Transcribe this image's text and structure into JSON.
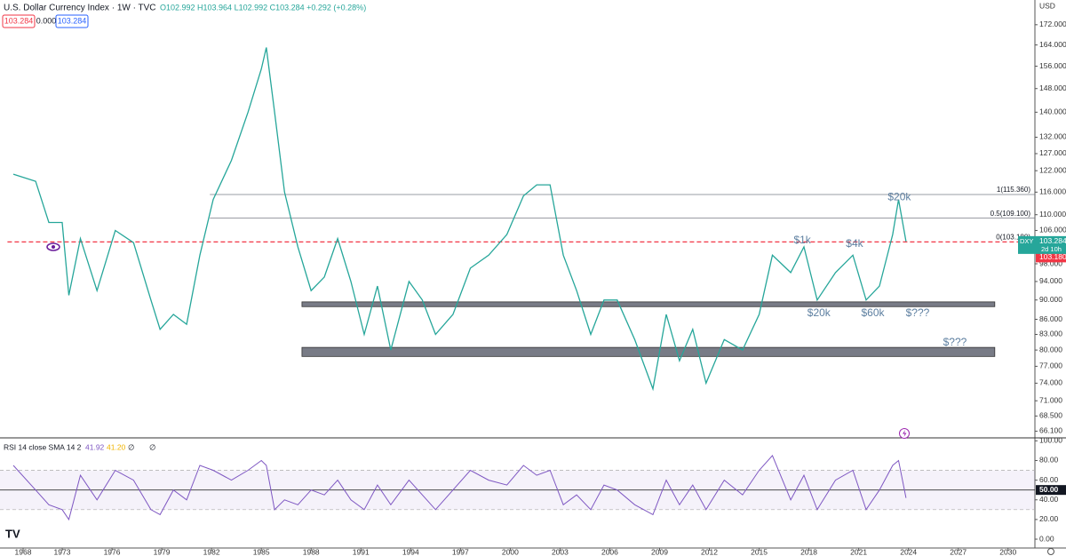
{
  "header": {
    "title": "U.S. Dollar Currency Index · 1W · TVC",
    "ohlc": "O102.992 H103.964 L102.992 C103.284 +0.292 (+0.28%)",
    "badges": [
      "103.284",
      "0.000",
      "103.284"
    ]
  },
  "chart_data": [
    {
      "type": "line",
      "currency": "USD",
      "log_scale": true,
      "x": [
        1966.75,
        1969.6,
        1971.3,
        1973,
        1973.4,
        1974.1,
        1975.1,
        1976.2,
        1977.3,
        1978.35,
        1978.9,
        1979.7,
        1980.5,
        1981.3,
        1982.1,
        1983.2,
        1984.2,
        1985.0,
        1985.3,
        1985.8,
        1986.4,
        1987.2,
        1988.0,
        1988.8,
        1989.6,
        1990.4,
        1991.2,
        1992.0,
        1992.8,
        1993.9,
        1994.7,
        1995.5,
        1996.55,
        1997.6,
        1998.7,
        1999.8,
        2000.8,
        2001.6,
        2002.4,
        2003.2,
        2004.0,
        2004.85,
        2005.65,
        2006.45,
        2007.5,
        2008.6,
        2009.4,
        2010.2,
        2011.0,
        2011.8,
        2012.9,
        2014.0,
        2015.0,
        2015.8,
        2016.9,
        2017.7,
        2018.5,
        2019.6,
        2020.65,
        2021.45,
        2022.25,
        2023.05,
        2023.4,
        2023.85
      ],
      "series": [
        {
          "name": "DXY",
          "color": "#26a69a",
          "values": [
            121,
            119,
            108,
            108,
            91,
            104,
            92,
            106,
            103,
            90,
            84,
            87,
            85,
            100,
            114,
            125,
            140,
            155,
            163,
            140,
            116,
            102,
            92,
            95,
            104,
            94,
            83,
            93,
            80,
            94,
            90,
            83,
            87,
            97,
            100,
            105,
            115,
            118,
            118,
            100,
            92,
            83,
            90,
            90,
            82,
            73,
            87,
            78,
            84,
            74,
            82,
            80,
            87,
            100,
            96,
            102,
            90,
            96,
            100,
            90,
            93,
            105,
            114,
            103.284
          ]
        }
      ],
      "xlim": [
        1965,
        2031.6
      ],
      "xticks": [
        1968,
        1973,
        1976,
        1979,
        1982,
        1985,
        1988,
        1991,
        1994,
        1997,
        2000,
        2003,
        2006,
        2009,
        2012,
        2015,
        2018,
        2021,
        2024,
        2027,
        2030
      ],
      "ylim": [
        65.2,
        182.3
      ],
      "yticks": [
        {
          "value": 172,
          "label": "172.000"
        },
        {
          "value": 164,
          "label": "164.000"
        },
        {
          "value": 156,
          "label": "156.000"
        },
        {
          "value": 148,
          "label": "148.000"
        },
        {
          "value": 140,
          "label": "140.000"
        },
        {
          "value": 132,
          "label": "132.000"
        },
        {
          "value": 127,
          "label": "127.000"
        },
        {
          "value": 122,
          "label": "122.000"
        },
        {
          "value": 116,
          "label": "116.000"
        },
        {
          "value": 110,
          "label": "110.000"
        },
        {
          "value": 106,
          "label": "106.000"
        },
        {
          "value": 98,
          "label": "98.000"
        },
        {
          "value": 94,
          "label": "94.000"
        },
        {
          "value": 90,
          "label": "90.000"
        },
        {
          "value": 86,
          "label": "86.000"
        },
        {
          "value": 83,
          "label": "83.000"
        },
        {
          "value": 80,
          "label": "80.000"
        },
        {
          "value": 77,
          "label": "77.000"
        },
        {
          "value": 74,
          "label": "74.000"
        },
        {
          "value": 71,
          "label": "71.000"
        },
        {
          "value": 68.5,
          "label": "68.500"
        },
        {
          "value": 66.1,
          "label": "66.100"
        }
      ],
      "price_tag": {
        "symbol": "DXY",
        "value": 103.284,
        "countdown": "2d 10h"
      },
      "fib_levels": [
        {
          "label": "1(115.360)",
          "value": 115.36,
          "start": 1981.9
        },
        {
          "label": "0.5(109.100)",
          "value": 109.1,
          "start": 1981.9
        },
        {
          "label": "0(103.180)",
          "value": 103.18,
          "start": 1966,
          "tag_label": "103.180"
        }
      ],
      "zones": [
        {
          "low": 88.6,
          "high": 89.6,
          "start": 1987.45,
          "end": 2029.2
        },
        {
          "low": 78.8,
          "high": 80.5,
          "start": 1987.45,
          "end": 2029.2
        }
      ],
      "annotations": [
        {
          "text": "$20k",
          "x": 2023.45,
          "y": 114.5
        },
        {
          "text": "$1k",
          "x": 2017.6,
          "y": 103.5
        },
        {
          "text": "$4k",
          "x": 2020.75,
          "y": 102.7
        },
        {
          "text": "$20k",
          "x": 2018.6,
          "y": 87.2
        },
        {
          "text": "$60k",
          "x": 2021.85,
          "y": 87.2
        },
        {
          "text": "$???",
          "x": 2024.55,
          "y": 87.2
        },
        {
          "text": "$???",
          "x": 2026.8,
          "y": 81.4
        }
      ]
    },
    {
      "type": "line",
      "title": "RSI 14 close SMA 14 2",
      "readout": [
        "41.92",
        "41.20",
        "∅",
        "∅"
      ],
      "series": [
        {
          "name": "RSI",
          "color": "#7e57c2",
          "values": [
            75,
            50,
            35,
            30,
            20,
            65,
            40,
            70,
            60,
            30,
            25,
            50,
            40,
            75,
            70,
            60,
            70,
            80,
            75,
            30,
            40,
            35,
            50,
            45,
            60,
            40,
            30,
            55,
            35,
            60,
            45,
            30,
            50,
            70,
            60,
            55,
            75,
            65,
            70,
            35,
            45,
            30,
            55,
            50,
            35,
            25,
            60,
            35,
            55,
            30,
            60,
            45,
            70,
            85,
            40,
            65,
            30,
            60,
            70,
            30,
            50,
            75,
            80,
            41.92
          ]
        }
      ],
      "ylim": [
        -9,
        103
      ],
      "band": [
        30,
        70
      ],
      "midline": {
        "value": 50,
        "label": "50.00"
      },
      "yticks": [
        {
          "value": 100,
          "label": "100.00"
        },
        {
          "value": 80,
          "label": "80.00"
        },
        {
          "value": 60,
          "label": "60.00"
        },
        {
          "value": 40,
          "label": "40.00"
        },
        {
          "value": 20,
          "label": "20.00"
        },
        {
          "value": 0,
          "label": "0.00"
        }
      ]
    }
  ]
}
